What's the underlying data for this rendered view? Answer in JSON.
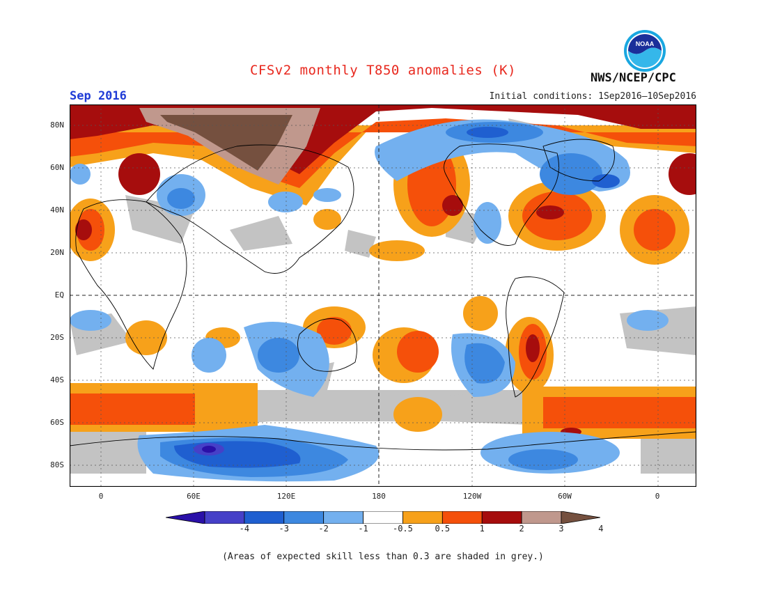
{
  "header": {
    "title": "CFSv2 monthly T850 anomalies (K)",
    "month": "Sep 2016",
    "initial_conditions": "Initial conditions: 1Sep2016–10Sep2016",
    "agency": "NWS/NCEP/CPC",
    "logo_text": "NOAA"
  },
  "map": {
    "lat_labels": [
      "80N",
      "60N",
      "40N",
      "20N",
      "EQ",
      "20S",
      "40S",
      "60S",
      "80S"
    ],
    "lon_labels": [
      "0",
      "60E",
      "120E",
      "180",
      "120W",
      "60W",
      "0"
    ]
  },
  "colorbar": {
    "labels": [
      "-4",
      "-3",
      "-2",
      "-1",
      "-0.5",
      "0.5",
      "1",
      "2",
      "3",
      "4"
    ],
    "colors": [
      "#2a10a8",
      "#4640c8",
      "#1f5fd0",
      "#3d88e0",
      "#73b0ef",
      "#ffffff",
      "#f7a11a",
      "#f5500a",
      "#a60d0d",
      "#c0988d",
      "#75503f"
    ]
  },
  "footnote": "(Areas of expected skill less than 0.3 are shaded in grey.)"
}
